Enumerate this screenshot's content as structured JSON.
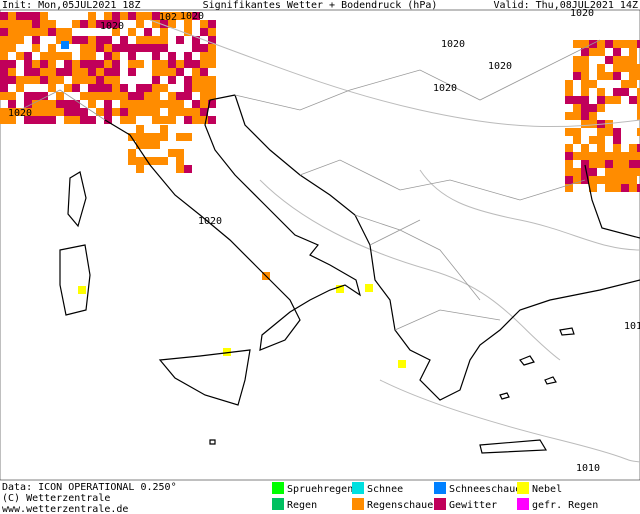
{
  "header": {
    "init": "Init: Mon,05JUL2021 18Z",
    "title": "Signifikantes Wetter +  Bodendruck (hPa)",
    "valid": "Valid: Thu,08JUL2021 14Z"
  },
  "map": {
    "isobar_labels": [
      "102",
      "1020",
      "1020",
      "1020",
      "1020",
      "1020",
      "1020",
      "1020",
      "1020",
      "1010",
      "101"
    ]
  },
  "legend": {
    "items": [
      {
        "label": "Spruehregen",
        "color": "#00ff00"
      },
      {
        "label": "Schnee",
        "color": "#00e0e0"
      },
      {
        "label": "Schneeschauer",
        "color": "#0080ff"
      },
      {
        "label": "Nebel",
        "color": "#ffff00"
      },
      {
        "label": "Regen",
        "color": "#00c060"
      },
      {
        "label": "Regenschauer",
        "color": "#ff8c00"
      },
      {
        "label": "Gewitter",
        "color": "#c0005a"
      },
      {
        "label": "gefr. Regen",
        "color": "#ff00ff"
      }
    ]
  },
  "footer": {
    "source": "Data: ICON OPERATIONAL 0.250°",
    "copyright": "(C) Wetterzentrale",
    "url": "www.wetterzentrale.de"
  }
}
